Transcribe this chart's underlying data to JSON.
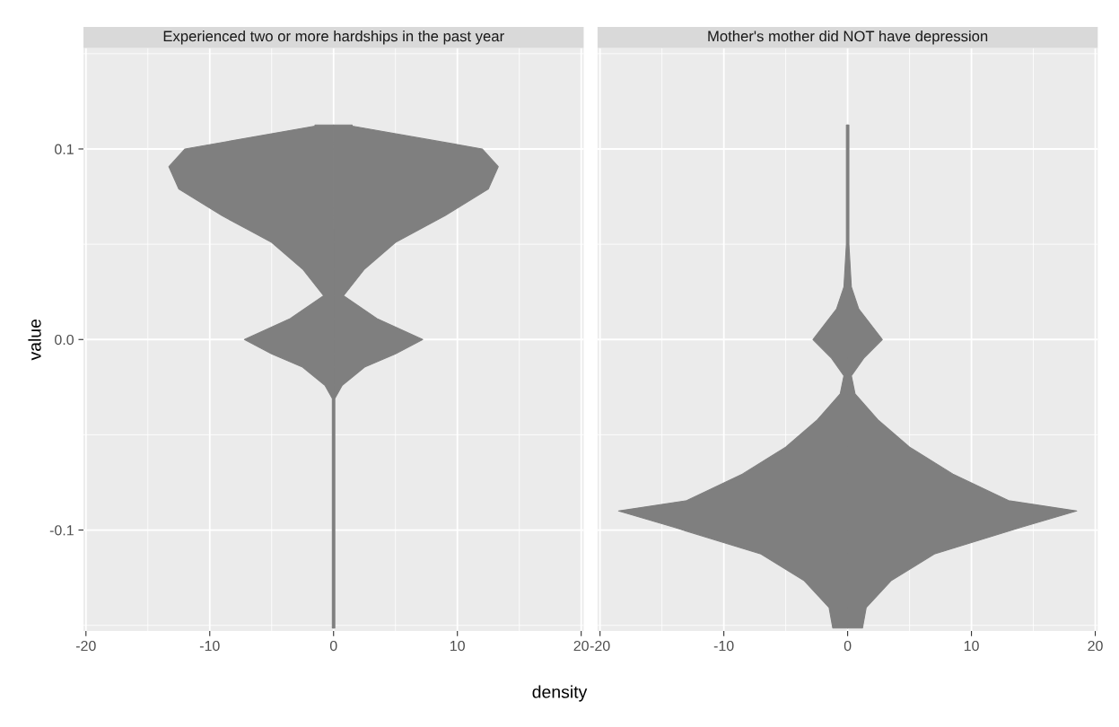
{
  "chart_data": [
    {
      "type": "area",
      "orientation": "horizontal",
      "title": "Experienced two or more hardships in the past year",
      "xlabel": "density",
      "ylabel": "value",
      "x": [
        0.1126,
        0.112,
        0.1,
        0.0907,
        0.079,
        0.065,
        0.051,
        0.037,
        0.023,
        0.011,
        0.0,
        -0.0075,
        -0.0145,
        -0.024,
        -0.031,
        -0.05,
        -0.1,
        -0.1514
      ],
      "series": [
        {
          "color": "#7f7f7f",
          "values": [
            1.5,
            1.5,
            12,
            13.3,
            12.5,
            9,
            5,
            2.5,
            0.8,
            3.5,
            7.2,
            5,
            2.5,
            0.7,
            0.1,
            0.1,
            0.1,
            0.1
          ]
        },
        {
          "color": "#7f7f7f",
          "values": [
            -1.5,
            -1.5,
            -12,
            -13.3,
            -12.5,
            -9,
            -5,
            -2.5,
            -0.8,
            -3.5,
            -7.2,
            -5,
            -2.5,
            -0.7,
            -0.1,
            -0.1,
            -0.1,
            -0.1
          ]
        }
      ],
      "xlim": [
        -20.2,
        20.2
      ],
      "ylim": [
        -0.153,
        0.153
      ],
      "xticks": [
        -20,
        -10,
        0,
        10,
        20
      ],
      "yticks": [
        {
          "value": 0.1,
          "label": "0.1"
        },
        {
          "value": 0.0,
          "label": "0.0"
        },
        {
          "value": -0.1,
          "label": "-0.1"
        }
      ],
      "grid": true
    },
    {
      "type": "area",
      "orientation": "horizontal",
      "title": "Mother's mother did NOT have depression",
      "x": [
        0.1126,
        0.05,
        0.0276,
        0.016,
        0.0,
        -0.0098,
        -0.019,
        -0.0285,
        -0.0425,
        -0.0565,
        -0.0706,
        -0.0846,
        -0.09,
        -0.0986,
        -0.1126,
        -0.1266,
        -0.1407,
        -0.1514
      ],
      "series": [
        {
          "color": "#7f7f7f",
          "values": [
            0.1,
            0.1,
            0.3,
            0.9,
            2.8,
            1.3,
            0.3,
            0.6,
            2.5,
            5,
            8.5,
            13,
            18.5,
            14,
            7,
            3.5,
            1.5,
            1.2
          ]
        },
        {
          "color": "#7f7f7f",
          "values": [
            -0.1,
            -0.1,
            -0.3,
            -0.9,
            -2.8,
            -1.3,
            -0.3,
            -0.6,
            -2.5,
            -5,
            -8.5,
            -13,
            -18.5,
            -14,
            -7,
            -3.5,
            -1.5,
            -1.2
          ]
        }
      ],
      "xlim": [
        -20.2,
        20.2
      ],
      "ylim": [
        -0.153,
        0.153
      ],
      "xticks": [
        -20,
        -10,
        0,
        10,
        20
      ],
      "yticks": [
        0.1,
        0,
        -0.1
      ],
      "grid": true,
      "tick_labels": "x"
    }
  ]
}
